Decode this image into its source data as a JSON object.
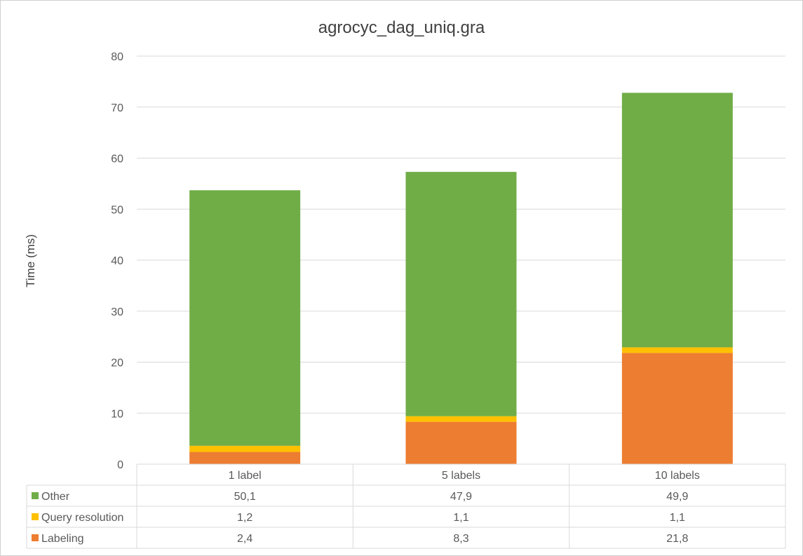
{
  "chart_data": {
    "type": "bar",
    "stacked": true,
    "title": "agrocyc_dag_uniq.gra",
    "xlabel": "",
    "ylabel": "Time (ms)",
    "ylim": [
      0,
      80
    ],
    "yticks": [
      "0",
      "10",
      "20",
      "30",
      "40",
      "50",
      "60",
      "70",
      "80"
    ],
    "grid": true,
    "legend_placement": "data-table",
    "categories": [
      "1 label",
      "5 labels",
      "10 labels"
    ],
    "series": [
      {
        "name": "Other",
        "color": "#70AD47",
        "values": [
          50.1,
          47.9,
          49.9
        ],
        "labels": [
          "50,1",
          "47,9",
          "49,9"
        ]
      },
      {
        "name": "Query resolution",
        "color": "#FFC000",
        "values": [
          1.2,
          1.1,
          1.1
        ],
        "labels": [
          "1,2",
          "1,1",
          "1,1"
        ]
      },
      {
        "name": "Labeling",
        "color": "#ED7D31",
        "values": [
          2.4,
          8.3,
          21.8
        ],
        "labels": [
          "2,4",
          "8,3",
          "21,8"
        ]
      }
    ]
  }
}
